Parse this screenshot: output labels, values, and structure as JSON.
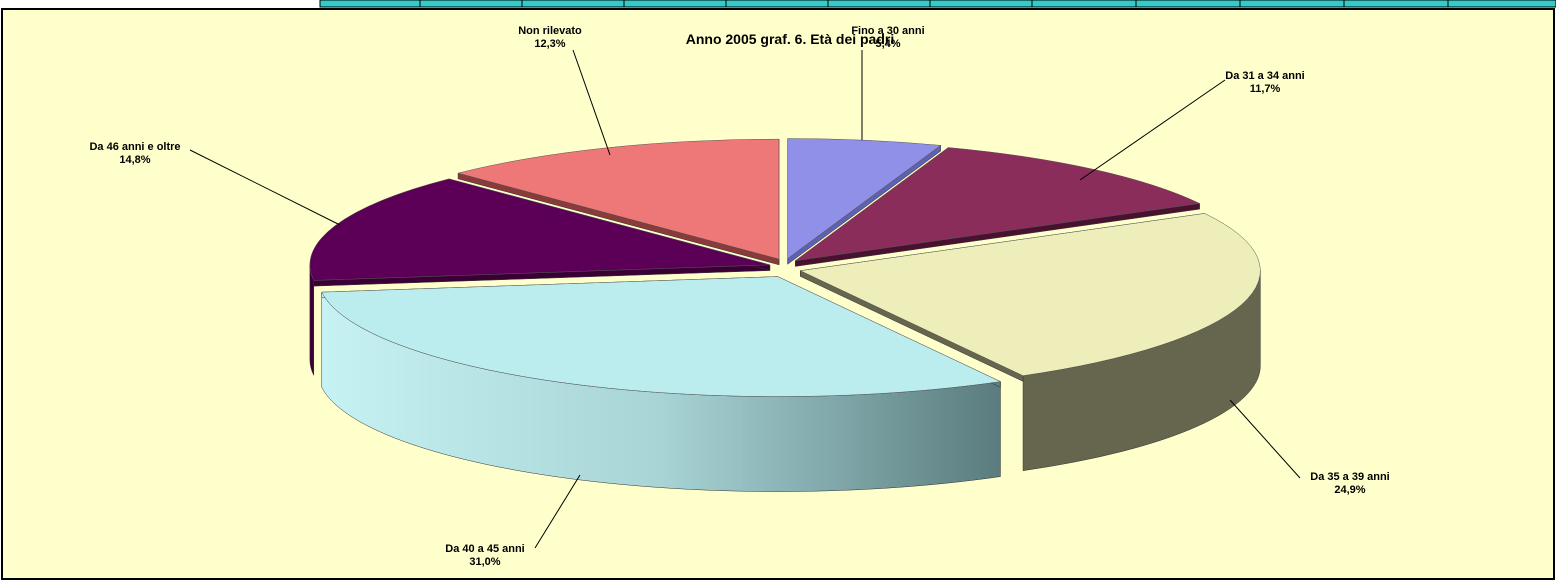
{
  "chart_data": {
    "type": "pie",
    "title": "Anno 2005 graf. 6. Età dei padri",
    "categories": [
      "Fino a 30 anni",
      "Da 31 a 34 anni",
      "Da 35 a 39 anni",
      "Da 40 a 45 anni",
      "Da 46 anni e oltre",
      "Non rilevato"
    ],
    "values": [
      5.4,
      11.7,
      24.9,
      31.0,
      14.8,
      12.3
    ],
    "value_labels": [
      "5,4%",
      "11,7%",
      "24,9%",
      "31,0%",
      "14,8%",
      "12,3%"
    ],
    "colors": [
      "#9090e8",
      "#8b2d5a",
      "#eeeebb",
      "#bbecee",
      "#5c0057",
      "#ee7777"
    ]
  }
}
